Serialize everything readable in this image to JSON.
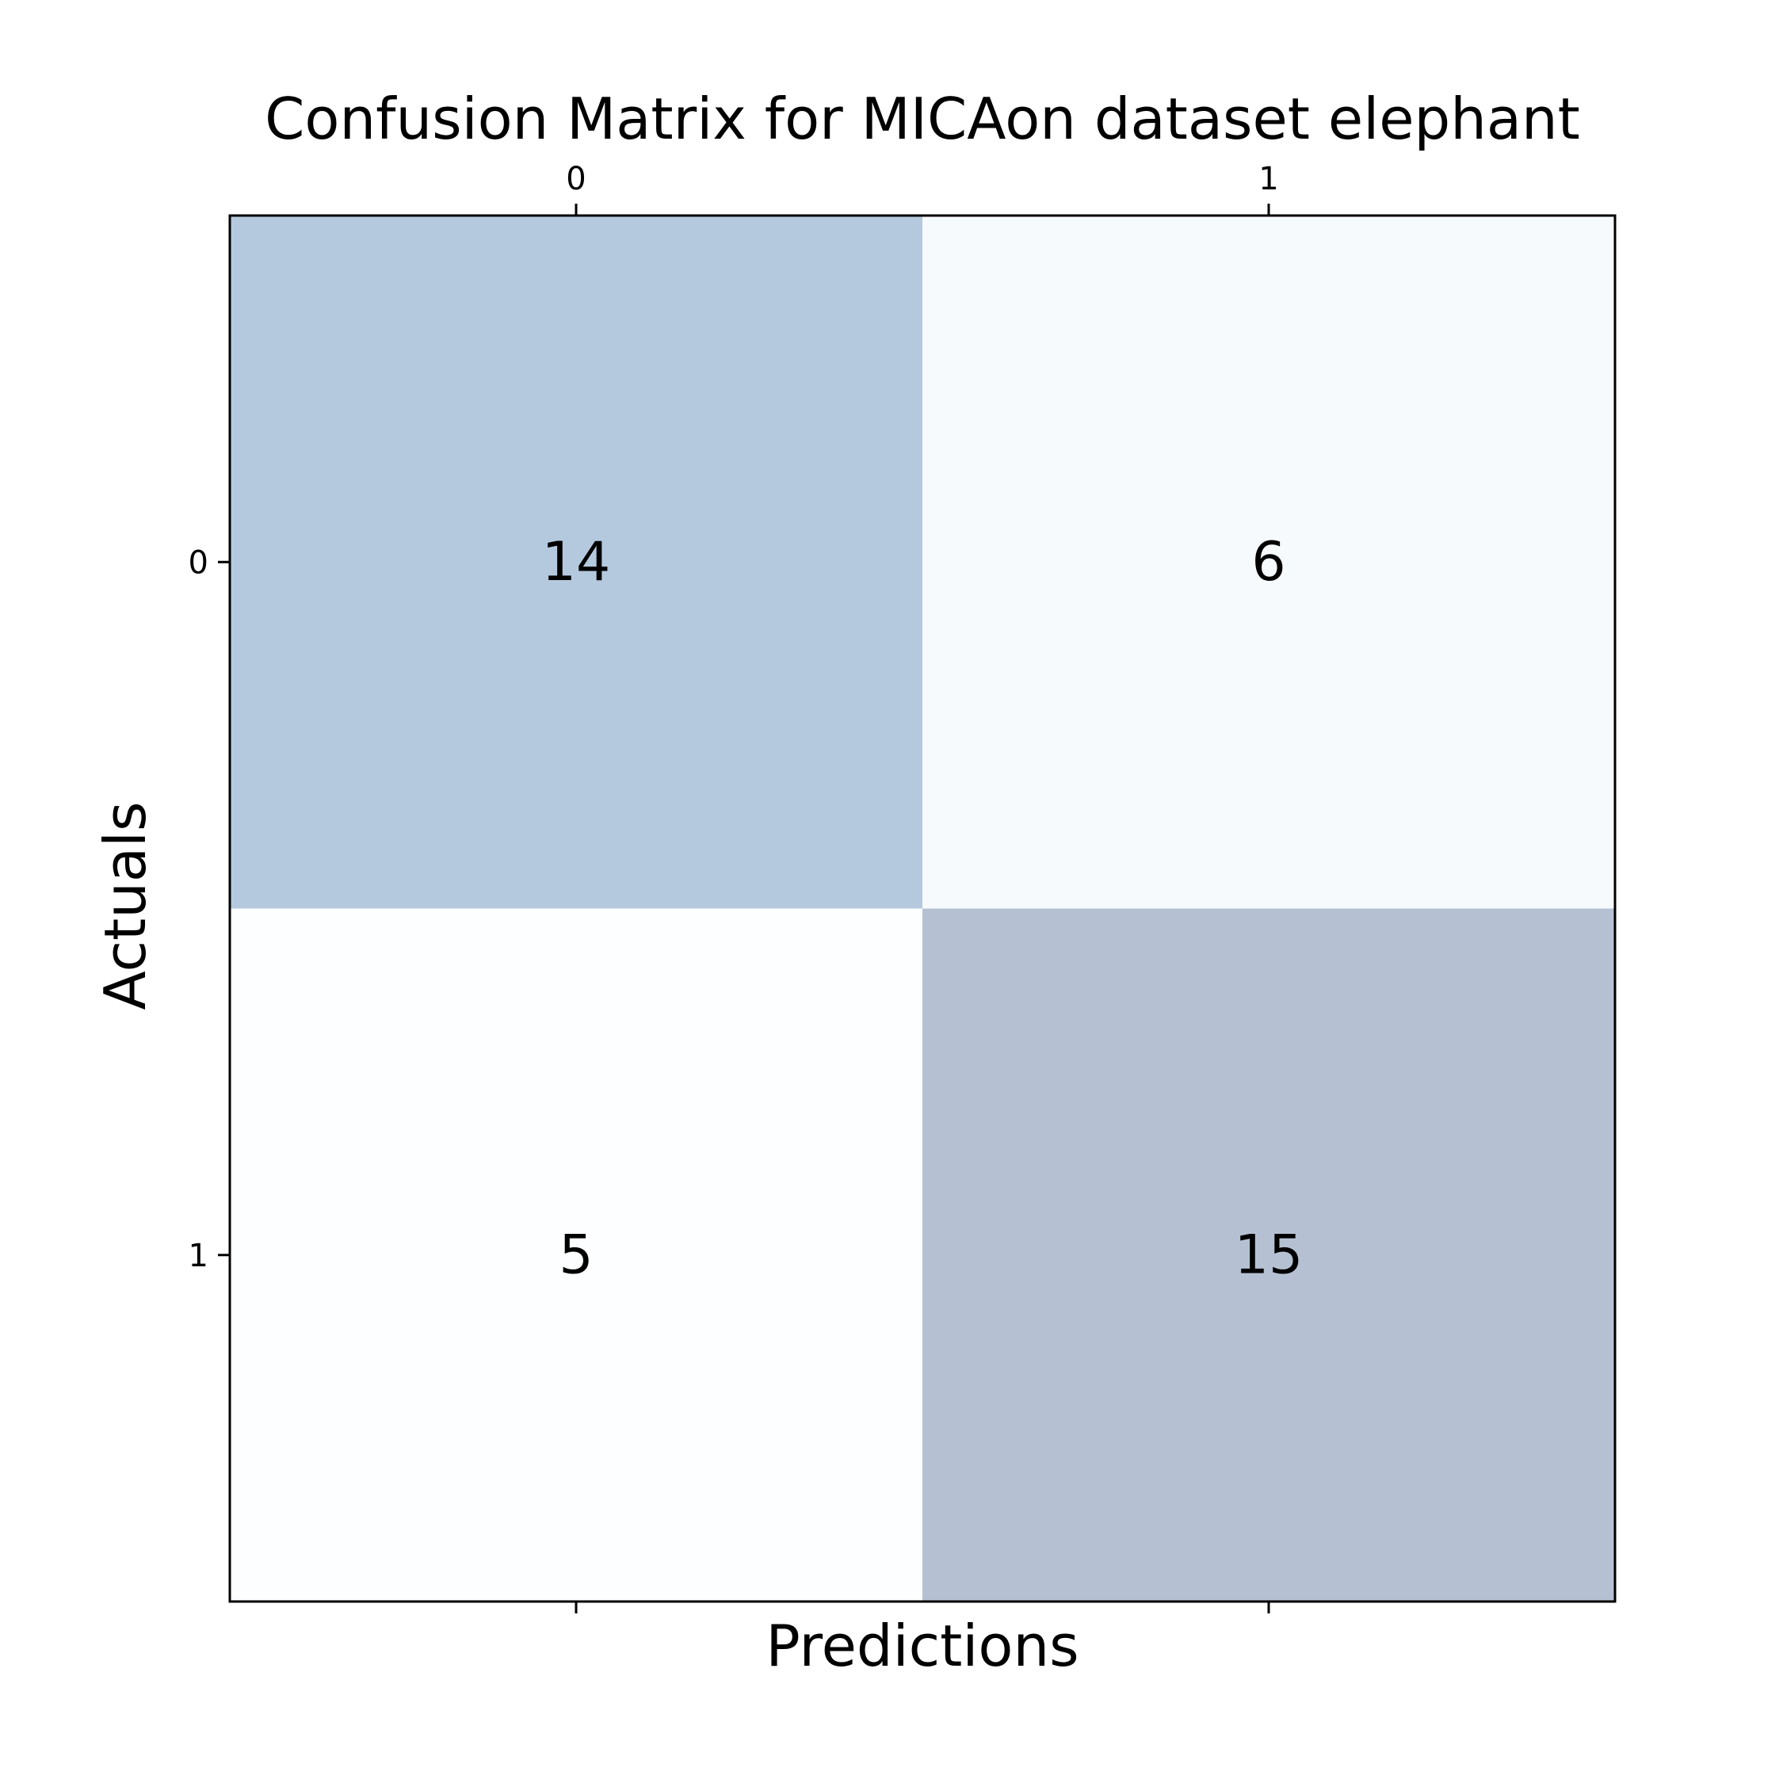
{
  "chart_data": {
    "type": "heatmap",
    "title": "Confusion Matrix for MICAon dataset elephant",
    "xlabel": "Predictions",
    "ylabel": "Actuals",
    "x_categories": [
      "0",
      "1"
    ],
    "y_categories": [
      "0",
      "1"
    ],
    "values": [
      [
        14,
        6
      ],
      [
        5,
        15
      ]
    ],
    "colormap": "Blues",
    "colors": {
      "low": "#f7fbff",
      "high": "#08306b"
    },
    "cell_alpha": 0.3,
    "x_ticks_position": "top",
    "grid": false,
    "legend": "none"
  }
}
